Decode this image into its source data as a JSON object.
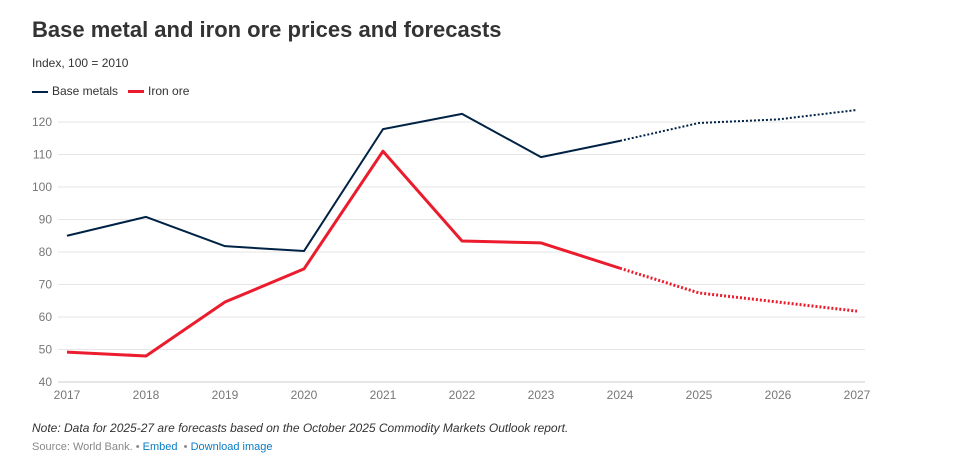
{
  "chart_data": {
    "type": "line",
    "title": "Base metal and iron ore prices and forecasts",
    "subtitle": "Index, 100 = 2010",
    "xlabel": "",
    "ylabel": "",
    "x": [
      "2017",
      "2018",
      "2019",
      "2020",
      "2021",
      "2022",
      "2023",
      "2024",
      "2025",
      "2026",
      "2027"
    ],
    "ylim": [
      40,
      125
    ],
    "yticks": [
      40,
      50,
      60,
      70,
      80,
      90,
      100,
      110,
      120
    ],
    "grid": true,
    "legend_placement": "top-left",
    "forecast_start": "2024",
    "series": [
      {
        "name": "Base metals",
        "color": "#002244",
        "values": [
          85,
          90.8,
          81.8,
          80.3,
          117.8,
          122.5,
          109.2,
          114.2,
          119.7,
          120.8,
          123.7
        ]
      },
      {
        "name": "Iron ore",
        "color": "#eb1c2d",
        "values": [
          49.2,
          48,
          64.6,
          74.8,
          111,
          83.4,
          82.8,
          75,
          67.4,
          64.6,
          61.8
        ]
      }
    ]
  },
  "note": "Note: Data for 2025-27 are forecasts based on the October 2025 Commodity Markets Outlook report.",
  "source": {
    "text": "Source: World Bank.",
    "sep": "•",
    "embed": "Embed",
    "download": "Download image"
  }
}
